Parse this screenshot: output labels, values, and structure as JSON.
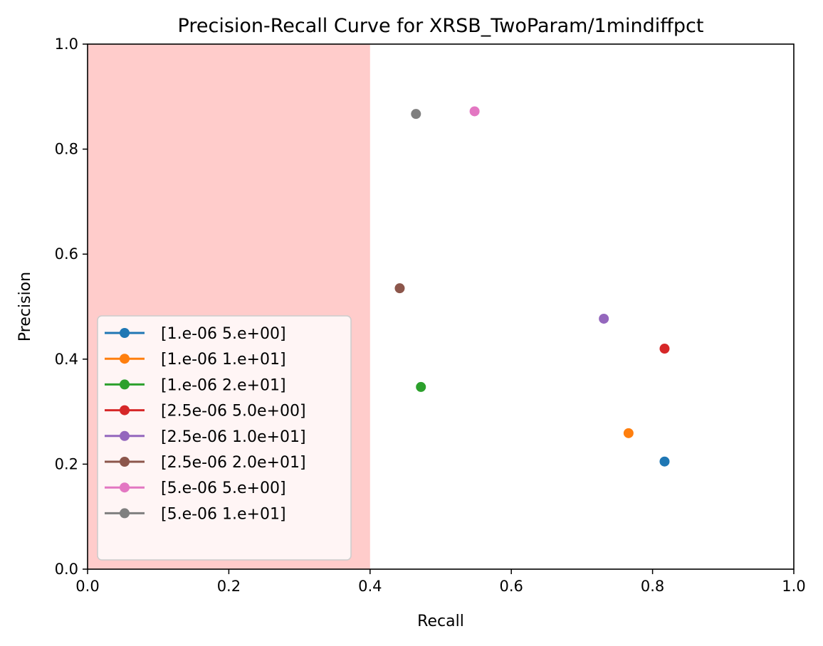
{
  "chart_data": {
    "type": "scatter",
    "title": "Precision-Recall Curve for XRSB_TwoParam/1mindiffpct",
    "xlabel": "Recall",
    "ylabel": "Precision",
    "xlim": [
      0.0,
      1.0
    ],
    "ylim": [
      0.0,
      1.0
    ],
    "xticks": [
      "0.0",
      "0.2",
      "0.4",
      "0.6",
      "0.8",
      "1.0"
    ],
    "yticks": [
      "0.0",
      "0.2",
      "0.4",
      "0.6",
      "0.8",
      "1.0"
    ],
    "grid": false,
    "legend_position": "lower-left",
    "shaded_region": {
      "x_start": 0.0,
      "x_end": 0.4,
      "color": "#ffcccb"
    },
    "series": [
      {
        "name": "[1.e-06 5.e+00]",
        "color": "#1f77b4",
        "points": [
          [
            0.817,
            0.205
          ]
        ]
      },
      {
        "name": "[1.e-06 1.e+01]",
        "color": "#ff7f0e",
        "points": [
          [
            0.766,
            0.259
          ]
        ]
      },
      {
        "name": "[1.e-06 2.e+01]",
        "color": "#2ca02c",
        "points": [
          [
            0.472,
            0.347
          ]
        ]
      },
      {
        "name": "[2.5e-06 5.0e+00]",
        "color": "#d62728",
        "points": [
          [
            0.817,
            0.42
          ]
        ]
      },
      {
        "name": "[2.5e-06 1.0e+01]",
        "color": "#9467bd",
        "points": [
          [
            0.731,
            0.477
          ]
        ]
      },
      {
        "name": "[2.5e-06 2.0e+01]",
        "color": "#8c564b",
        "points": [
          [
            0.442,
            0.535
          ]
        ]
      },
      {
        "name": "[5.e-06 5.e+00]",
        "color": "#e377c2",
        "points": [
          [
            0.548,
            0.872
          ]
        ]
      },
      {
        "name": "[5.e-06 1.e+01]",
        "color": "#7f7f7f",
        "points": [
          [
            0.465,
            0.867
          ]
        ]
      }
    ]
  }
}
